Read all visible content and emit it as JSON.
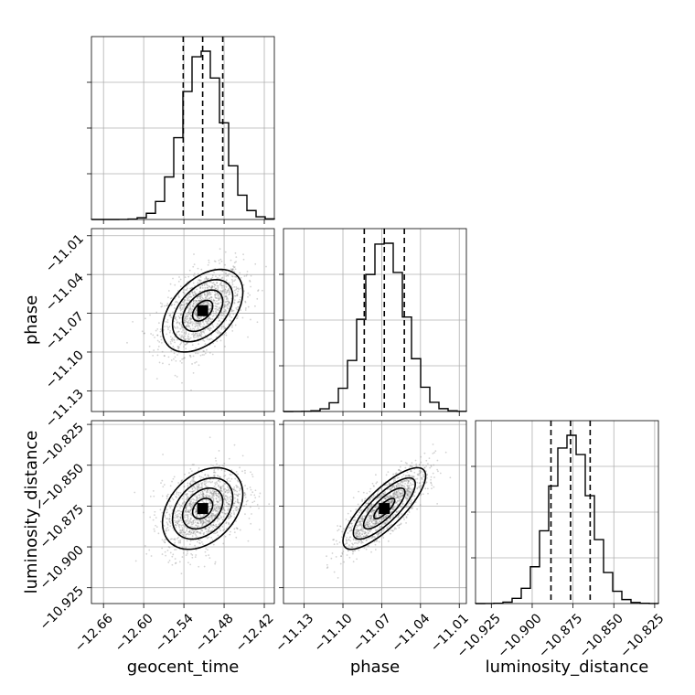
{
  "chart_data": {
    "type": "corner",
    "parameters": [
      {
        "name": "geocent_time",
        "label": "geocent_time",
        "range": [
          -12.678,
          -12.405
        ],
        "ticks": [
          -12.66,
          -12.6,
          -12.54,
          -12.48,
          -12.42
        ],
        "tick_labels": [
          "−12.66",
          "−12.60",
          "−12.54",
          "−12.48",
          "−12.42"
        ],
        "mean": -12.512,
        "sigma": 0.03,
        "quantiles": [
          -12.541,
          -12.512,
          -12.482
        ]
      },
      {
        "name": "phase",
        "label": "phase",
        "range": [
          -11.146,
          -11.0045
        ],
        "ticks": [
          -11.13,
          -11.1,
          -11.07,
          -11.04,
          -11.01
        ],
        "tick_labels": [
          "−11.13",
          "−11.10",
          "−11.07",
          "−11.04",
          "−11.01"
        ],
        "mean": -11.068,
        "sigma": 0.016,
        "quantiles": [
          -11.0835,
          -11.068,
          -11.0525
        ]
      },
      {
        "name": "luminosity_distance",
        "label": "luminosity_distance",
        "range": [
          -10.9347,
          -10.8227
        ],
        "ticks": [
          -10.925,
          -10.9,
          -10.875,
          -10.85,
          -10.825
        ],
        "tick_labels": [
          "−10.925",
          "−10.900",
          "−10.875",
          "−10.850",
          "−10.825"
        ],
        "mean": -10.8765,
        "sigma": 0.0125,
        "quantiles": [
          -10.8885,
          -10.8765,
          -10.8645
        ]
      }
    ],
    "pairs": [
      {
        "x": "geocent_time",
        "y": "phase",
        "correlation": 0.45
      },
      {
        "x": "geocent_time",
        "y": "luminosity_distance",
        "correlation": 0.35
      },
      {
        "x": "phase",
        "y": "luminosity_distance",
        "correlation": 0.8
      }
    ],
    "histogram_bins": 20,
    "contour_levels_sigma": [
      0.5,
      1.0,
      1.5,
      2.0
    ],
    "grid": true,
    "colors": {
      "line": "#000000",
      "scatter": "#808080",
      "grid": "#b0b0b0"
    }
  }
}
